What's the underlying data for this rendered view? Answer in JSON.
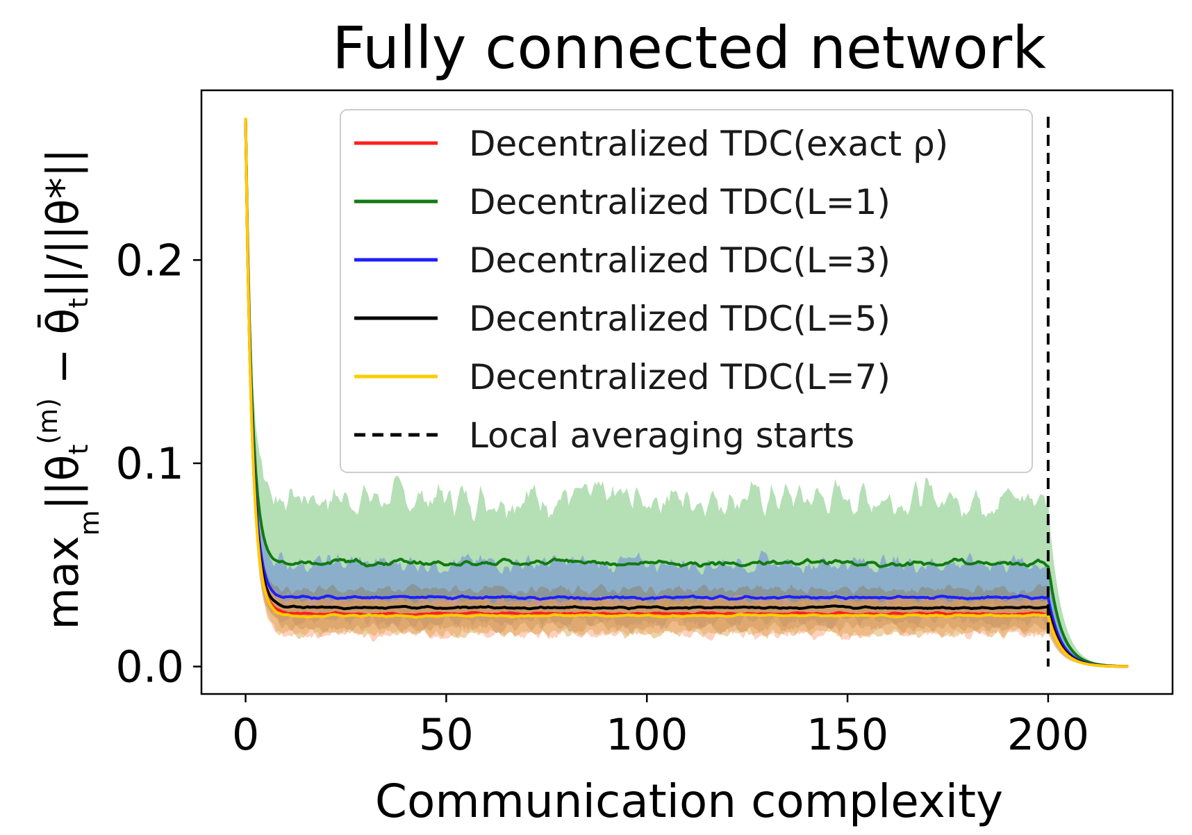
{
  "chart_data": {
    "type": "line",
    "title": "Fully connected network",
    "xlabel": "Communication complexity",
    "ylabel": "max_m ||θ_t^(m) − θ̄_t||/||θ*||",
    "xlim": [
      -11,
      231
    ],
    "ylim": [
      -0.0135,
      0.2835
    ],
    "xticks": [
      0,
      50,
      100,
      150,
      200
    ],
    "yticks": [
      0.0,
      0.1,
      0.2
    ],
    "xtick_labels": [
      "0",
      "50",
      "100",
      "150",
      "200"
    ],
    "ytick_labels": [
      "0.0",
      "0.1",
      "0.2"
    ],
    "grid": false,
    "legend_position": "top-right",
    "series": [
      {
        "name": "Decentralized TDC(exact ρ)",
        "color": "#ff1f1f",
        "plateau": 0.026,
        "band": [
          0.016,
          0.033
        ]
      },
      {
        "name": "Decentralized TDC(L=1)",
        "color": "#117a11",
        "plateau": 0.051,
        "band": [
          0.029,
          0.083
        ]
      },
      {
        "name": "Decentralized TDC(L=3)",
        "color": "#1f1fff",
        "plateau": 0.034,
        "band": [
          0.022,
          0.051
        ]
      },
      {
        "name": "Decentralized TDC(L=5)",
        "color": "#000000",
        "plateau": 0.029,
        "band": [
          0.019,
          0.038
        ]
      },
      {
        "name": "Decentralized TDC(L=7)",
        "color": "#ffcc00",
        "plateau": 0.025,
        "band": [
          0.016,
          0.032
        ]
      }
    ],
    "start_value": 0.27,
    "x_max": 220,
    "vline": {
      "x": 200,
      "label": "Local averaging starts",
      "style": "dashed",
      "color": "#000000"
    }
  }
}
